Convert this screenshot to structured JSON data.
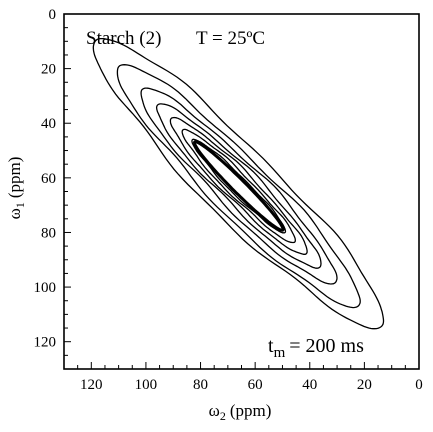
{
  "chart_data": {
    "type": "contour",
    "title": "Starch (2)",
    "temperature_label": "T = 25ºC",
    "mixing_time": {
      "symbol": "t",
      "subscript": "m",
      "value": "= 200 ms"
    },
    "xlabel": {
      "symbol": "ω",
      "subscript": "2",
      "unit": "(ppm)"
    },
    "ylabel": {
      "symbol": "ω",
      "subscript": "1",
      "unit": "(ppm)"
    },
    "xlim": [
      130,
      0
    ],
    "ylim": [
      0,
      130
    ],
    "x_ticks": [
      120,
      100,
      80,
      60,
      40,
      20,
      0
    ],
    "y_ticks": [
      0,
      20,
      40,
      60,
      80,
      100,
      120
    ],
    "x_reversed": true,
    "y_reversed": true,
    "grid": false,
    "description_of_data": "2D exchange NMR spectrum; intensity concentrated along the diagonal ω1 = ω2",
    "contour_levels": [
      {
        "level": 1,
        "center": [
          66,
          62
        ],
        "half_length": 74,
        "half_width": 13
      },
      {
        "level": 2,
        "center": [
          66,
          63
        ],
        "half_length": 62,
        "half_width": 10.5
      },
      {
        "level": 3,
        "center": [
          66,
          63
        ],
        "half_length": 50,
        "half_width": 8.5
      },
      {
        "level": 4,
        "center": [
          66,
          63
        ],
        "half_length": 42,
        "half_width": 6.8
      },
      {
        "level": 5,
        "center": [
          66,
          63
        ],
        "half_length": 35,
        "half_width": 5.4
      },
      {
        "level": 6,
        "center": [
          66,
          63
        ],
        "half_length": 29,
        "half_width": 4.2
      },
      {
        "level": 7,
        "center": [
          66,
          63
        ],
        "half_length": 24,
        "half_width": 3.2
      }
    ]
  }
}
